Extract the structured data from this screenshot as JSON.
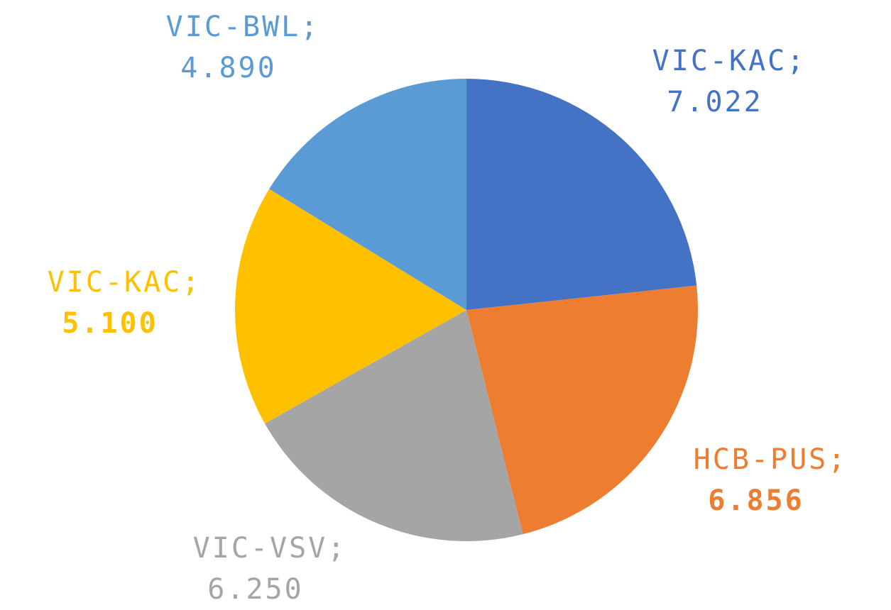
{
  "chart_data": {
    "type": "pie",
    "categories": [
      "VIC-KAC;",
      "HCB-PUS;",
      "VIC-VSV;",
      "VIC-KAC;",
      "VIC-BWL;"
    ],
    "values": [
      7.022,
      6.856,
      6.25,
      5.1,
      4.89
    ],
    "value_labels": [
      "7.022",
      "6.856",
      "6.250",
      "5.100",
      "4.890"
    ],
    "colors": [
      "#4472c4",
      "#ed7d31",
      "#a5a5a5",
      "#ffc000",
      "#5b9bd5"
    ],
    "value_label_bold": [
      false,
      true,
      false,
      true,
      false
    ]
  }
}
